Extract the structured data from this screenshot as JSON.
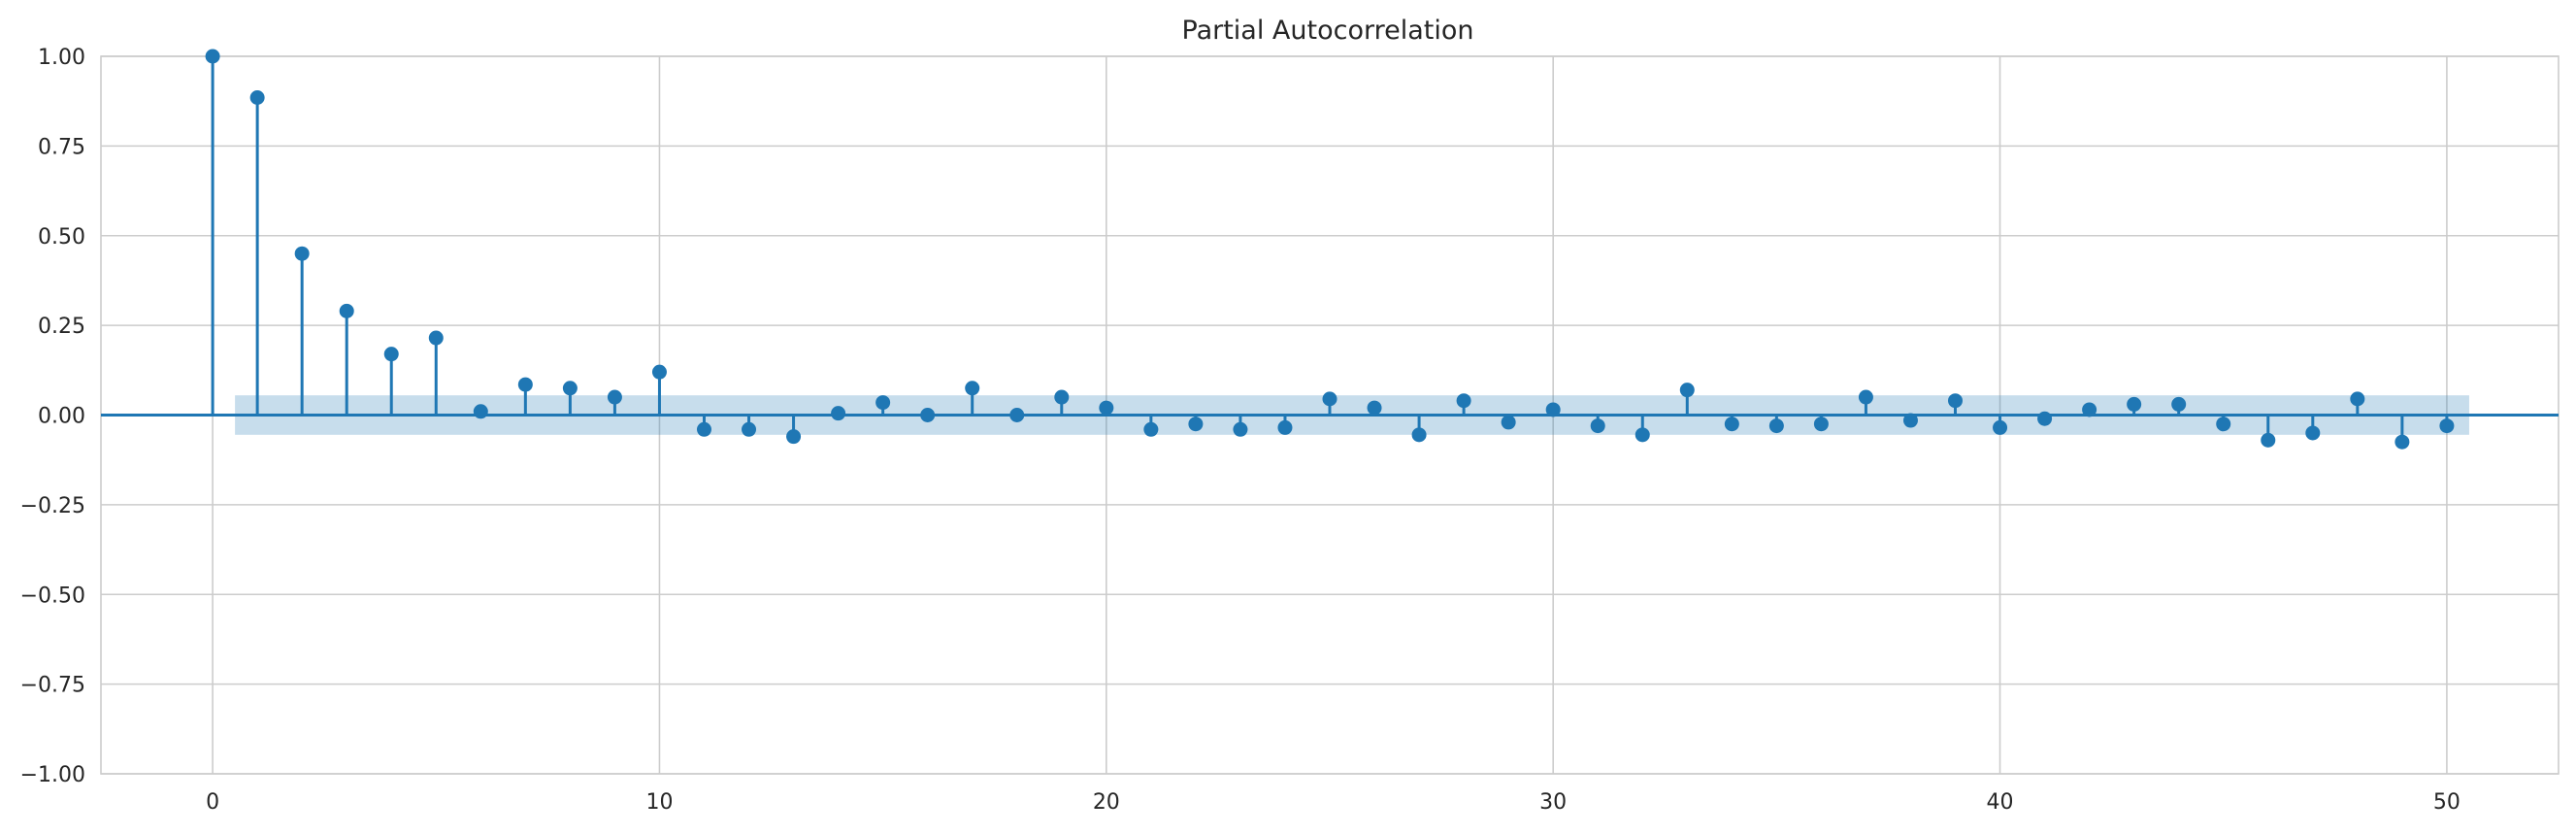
{
  "chart_data": {
    "type": "stem",
    "title": "Partial Autocorrelation",
    "xlabel": "",
    "ylabel": "",
    "xlim": [
      -2.5,
      52.5
    ],
    "ylim": [
      -1.0,
      1.0
    ],
    "xticks": [
      0,
      10,
      20,
      30,
      40,
      50
    ],
    "xtick_labels": [
      "0",
      "10",
      "20",
      "30",
      "40",
      "50"
    ],
    "yticks": [
      1.0,
      0.75,
      0.5,
      0.25,
      0.0,
      -0.25,
      -0.5,
      -0.75,
      -1.0
    ],
    "ytick_labels": [
      "1.00",
      "0.75",
      "0.50",
      "0.25",
      "0.00",
      "−0.25",
      "−0.50",
      "−0.75",
      "−1.00"
    ],
    "grid": true,
    "lags": [
      0,
      1,
      2,
      3,
      4,
      5,
      6,
      7,
      8,
      9,
      10,
      11,
      12,
      13,
      14,
      15,
      16,
      17,
      18,
      19,
      20,
      21,
      22,
      23,
      24,
      25,
      26,
      27,
      28,
      29,
      30,
      31,
      32,
      33,
      34,
      35,
      36,
      37,
      38,
      39,
      40,
      41,
      42,
      43,
      44,
      45,
      46,
      47,
      48,
      49,
      50
    ],
    "values": [
      1.0,
      0.885,
      0.45,
      0.29,
      0.17,
      0.215,
      0.01,
      0.085,
      0.075,
      0.05,
      0.12,
      -0.04,
      -0.04,
      -0.06,
      0.005,
      0.035,
      0.0,
      0.075,
      0.0,
      0.05,
      0.02,
      -0.04,
      -0.025,
      -0.04,
      -0.035,
      0.045,
      0.02,
      -0.055,
      0.04,
      -0.02,
      0.015,
      -0.03,
      -0.055,
      0.07,
      -0.025,
      -0.03,
      -0.025,
      0.05,
      -0.015,
      0.04,
      -0.035,
      -0.01,
      0.015,
      0.03,
      0.03,
      -0.025,
      -0.07,
      -0.05,
      0.045,
      -0.075,
      -0.03
    ],
    "confidence_band": {
      "x_start": 0.5,
      "x_end": 50.5,
      "lower": -0.055,
      "upper": 0.055
    },
    "colors": {
      "series": "#1f77b4",
      "band": "#1f77b4",
      "grid": "#cccccc",
      "axis": "#cccccc",
      "text": "#262626"
    }
  }
}
